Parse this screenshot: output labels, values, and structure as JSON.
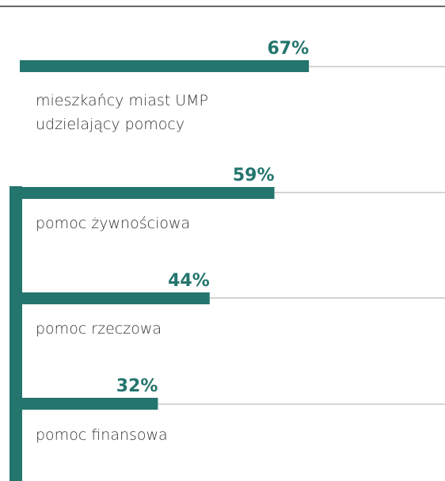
{
  "chart_data": {
    "type": "bar",
    "orientation": "horizontal",
    "categories": [
      "mieszkańcy miast UMP udzielający pomocy",
      "pomoc żywnościowa",
      "pomoc rzeczowa",
      "pomoc finansowa"
    ],
    "values": [
      67,
      59,
      44,
      32
    ],
    "value_labels": [
      "67%",
      "59%",
      "44%",
      "32%"
    ],
    "color": "#24756d",
    "xlim": [
      0,
      100
    ]
  }
}
